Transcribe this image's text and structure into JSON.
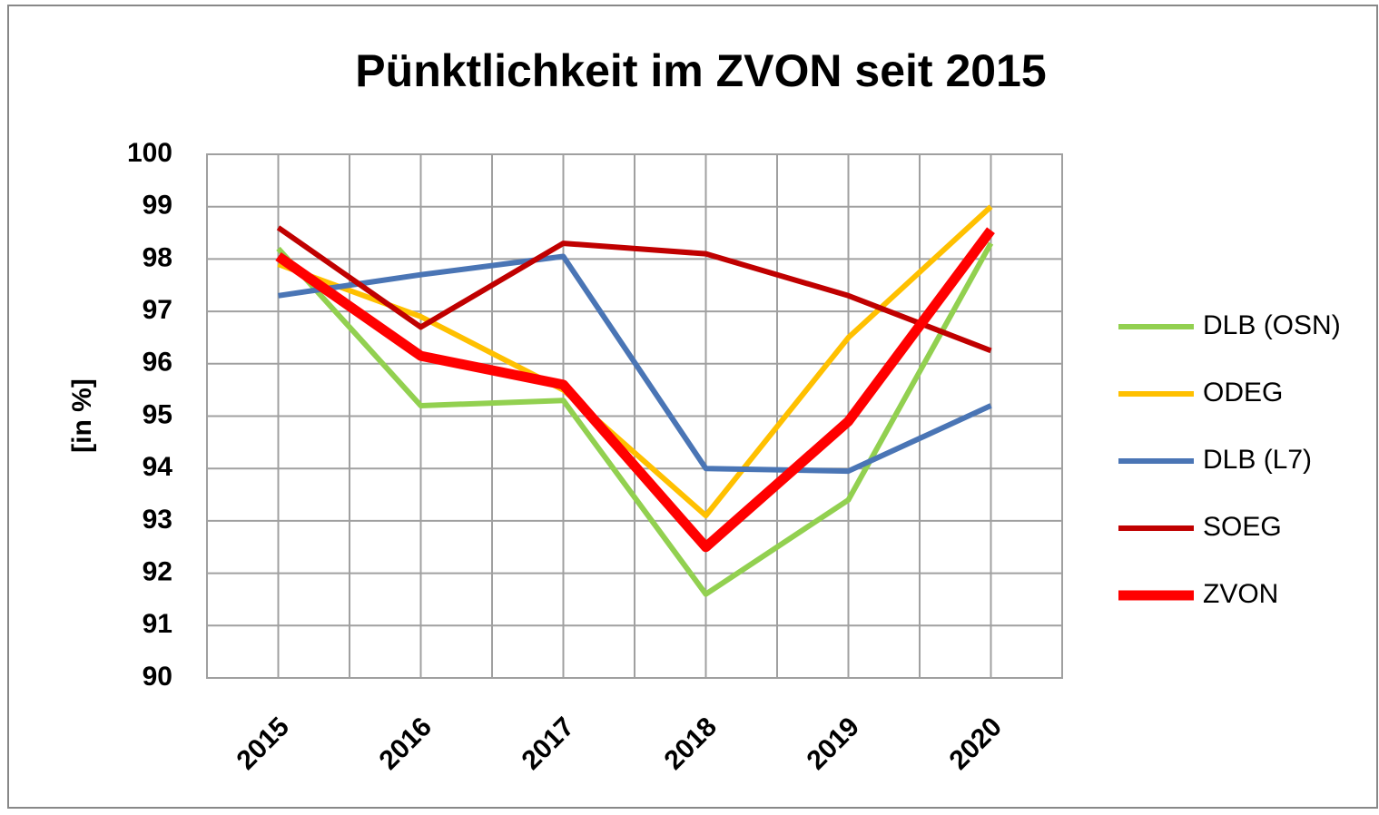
{
  "chart_data": {
    "type": "line",
    "title": "Pünktlichkeit im ZVON seit 2015",
    "y_label": "[in %]",
    "categories": [
      "2015",
      "2016",
      "2017",
      "2018",
      "2019",
      "2020"
    ],
    "series": [
      {
        "name": "DLB (OSN)",
        "color": "#92d050",
        "values": [
          98.2,
          95.2,
          95.3,
          91.6,
          93.4,
          98.3
        ]
      },
      {
        "name": "ODEG",
        "color": "#ffc000",
        "values": [
          97.9,
          96.9,
          95.5,
          93.1,
          96.5,
          99.0
        ]
      },
      {
        "name": "DLB (L7)",
        "color": "#4a75b5",
        "values": [
          97.3,
          97.7,
          98.05,
          94.0,
          93.95,
          95.2
        ]
      },
      {
        "name": "SOEG",
        "color": "#c00000",
        "values": [
          98.6,
          96.7,
          98.3,
          98.1,
          97.3,
          96.25
        ]
      },
      {
        "name": "ZVON",
        "color": "#ff0000",
        "values": [
          98.05,
          96.15,
          95.6,
          92.5,
          94.9,
          98.55
        ]
      }
    ],
    "ylim": [
      90,
      100
    ],
    "yticks": [
      90,
      91,
      92,
      93,
      94,
      95,
      96,
      97,
      98,
      99,
      100
    ],
    "grid": true,
    "legend": "right"
  }
}
